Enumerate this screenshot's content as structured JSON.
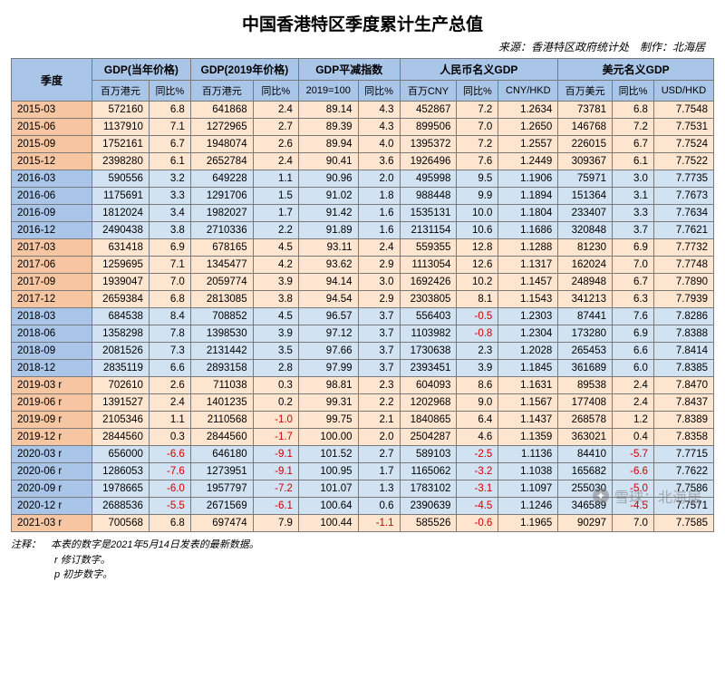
{
  "title": "中国香港特区季度累计生产总值",
  "source": "来源：香港特区政府统计处　制作：北海居",
  "watermark": {
    "brand": "雪球",
    "author": "北海居"
  },
  "headers": {
    "quarter": "季度",
    "groups": [
      {
        "label": "GDP(当年价格)",
        "cols": [
          "百万港元",
          "同比%"
        ]
      },
      {
        "label": "GDP(2019年价格)",
        "cols": [
          "百万港元",
          "同比%"
        ]
      },
      {
        "label": "GDP平减指数",
        "cols": [
          "2019=100",
          "同比%"
        ]
      },
      {
        "label": "人民币名义GDP",
        "cols": [
          "百万CNY",
          "同比%",
          "CNY/HKD"
        ]
      },
      {
        "label": "美元名义GDP",
        "cols": [
          "百万美元",
          "同比%",
          "USD/HKD"
        ]
      }
    ]
  },
  "footnotes": {
    "label": "注释：",
    "main": "本表的数字是2021年5月14日发表的最新数据。",
    "r": "r 修订数字。",
    "p": "p 初步数字。"
  },
  "rows": [
    {
      "q": "2015-03",
      "cells": [
        "572160",
        "6.8",
        "641868",
        "2.4",
        "89.14",
        "4.3",
        "452867",
        "7.2",
        "1.2634",
        "73781",
        "6.8",
        "7.7548"
      ]
    },
    {
      "q": "2015-06",
      "cells": [
        "1137910",
        "7.1",
        "1272965",
        "2.7",
        "89.39",
        "4.3",
        "899506",
        "7.0",
        "1.2650",
        "146768",
        "7.2",
        "7.7531"
      ]
    },
    {
      "q": "2015-09",
      "cells": [
        "1752161",
        "6.7",
        "1948074",
        "2.6",
        "89.94",
        "4.0",
        "1395372",
        "7.2",
        "1.2557",
        "226015",
        "6.7",
        "7.7524"
      ]
    },
    {
      "q": "2015-12",
      "cells": [
        "2398280",
        "6.1",
        "2652784",
        "2.4",
        "90.41",
        "3.6",
        "1926496",
        "7.6",
        "1.2449",
        "309367",
        "6.1",
        "7.7522"
      ]
    },
    {
      "q": "2016-03",
      "cells": [
        "590556",
        "3.2",
        "649228",
        "1.1",
        "90.96",
        "2.0",
        "495998",
        "9.5",
        "1.1906",
        "75971",
        "3.0",
        "7.7735"
      ]
    },
    {
      "q": "2016-06",
      "cells": [
        "1175691",
        "3.3",
        "1291706",
        "1.5",
        "91.02",
        "1.8",
        "988448",
        "9.9",
        "1.1894",
        "151364",
        "3.1",
        "7.7673"
      ]
    },
    {
      "q": "2016-09",
      "cells": [
        "1812024",
        "3.4",
        "1982027",
        "1.7",
        "91.42",
        "1.6",
        "1535131",
        "10.0",
        "1.1804",
        "233407",
        "3.3",
        "7.7634"
      ]
    },
    {
      "q": "2016-12",
      "cells": [
        "2490438",
        "3.8",
        "2710336",
        "2.2",
        "91.89",
        "1.6",
        "2131154",
        "10.6",
        "1.1686",
        "320848",
        "3.7",
        "7.7621"
      ]
    },
    {
      "q": "2017-03",
      "cells": [
        "631418",
        "6.9",
        "678165",
        "4.5",
        "93.11",
        "2.4",
        "559355",
        "12.8",
        "1.1288",
        "81230",
        "6.9",
        "7.7732"
      ]
    },
    {
      "q": "2017-06",
      "cells": [
        "1259695",
        "7.1",
        "1345477",
        "4.2",
        "93.62",
        "2.9",
        "1113054",
        "12.6",
        "1.1317",
        "162024",
        "7.0",
        "7.7748"
      ]
    },
    {
      "q": "2017-09",
      "cells": [
        "1939047",
        "7.0",
        "2059774",
        "3.9",
        "94.14",
        "3.0",
        "1692426",
        "10.2",
        "1.1457",
        "248948",
        "6.7",
        "7.7890"
      ]
    },
    {
      "q": "2017-12",
      "cells": [
        "2659384",
        "6.8",
        "2813085",
        "3.8",
        "94.54",
        "2.9",
        "2303805",
        "8.1",
        "1.1543",
        "341213",
        "6.3",
        "7.7939"
      ]
    },
    {
      "q": "2018-03",
      "cells": [
        "684538",
        "8.4",
        "708852",
        "4.5",
        "96.57",
        "3.7",
        "556403",
        "-0.5",
        "1.2303",
        "87441",
        "7.6",
        "7.8286"
      ]
    },
    {
      "q": "2018-06",
      "cells": [
        "1358298",
        "7.8",
        "1398530",
        "3.9",
        "97.12",
        "3.7",
        "1103982",
        "-0.8",
        "1.2304",
        "173280",
        "6.9",
        "7.8388"
      ]
    },
    {
      "q": "2018-09",
      "cells": [
        "2081526",
        "7.3",
        "2131442",
        "3.5",
        "97.66",
        "3.7",
        "1730638",
        "2.3",
        "1.2028",
        "265453",
        "6.6",
        "7.8414"
      ]
    },
    {
      "q": "2018-12",
      "cells": [
        "2835119",
        "6.6",
        "2893158",
        "2.8",
        "97.99",
        "3.7",
        "2393451",
        "3.9",
        "1.1845",
        "361689",
        "6.0",
        "7.8385"
      ]
    },
    {
      "q": "2019-03 r",
      "cells": [
        "702610",
        "2.6",
        "711038",
        "0.3",
        "98.81",
        "2.3",
        "604093",
        "8.6",
        "1.1631",
        "89538",
        "2.4",
        "7.8470"
      ]
    },
    {
      "q": "2019-06 r",
      "cells": [
        "1391527",
        "2.4",
        "1401235",
        "0.2",
        "99.31",
        "2.2",
        "1202968",
        "9.0",
        "1.1567",
        "177408",
        "2.4",
        "7.8437"
      ]
    },
    {
      "q": "2019-09 r",
      "cells": [
        "2105346",
        "1.1",
        "2110568",
        "-1.0",
        "99.75",
        "2.1",
        "1840865",
        "6.4",
        "1.1437",
        "268578",
        "1.2",
        "7.8389"
      ]
    },
    {
      "q": "2019-12 r",
      "cells": [
        "2844560",
        "0.3",
        "2844560",
        "-1.7",
        "100.00",
        "2.0",
        "2504287",
        "4.6",
        "1.1359",
        "363021",
        "0.4",
        "7.8358"
      ]
    },
    {
      "q": "2020-03 r",
      "cells": [
        "656000",
        "-6.6",
        "646180",
        "-9.1",
        "101.52",
        "2.7",
        "589103",
        "-2.5",
        "1.1136",
        "84410",
        "-5.7",
        "7.7715"
      ]
    },
    {
      "q": "2020-06 r",
      "cells": [
        "1286053",
        "-7.6",
        "1273951",
        "-9.1",
        "100.95",
        "1.7",
        "1165062",
        "-3.2",
        "1.1038",
        "165682",
        "-6.6",
        "7.7622"
      ]
    },
    {
      "q": "2020-09 r",
      "cells": [
        "1978665",
        "-6.0",
        "1957797",
        "-7.2",
        "101.07",
        "1.3",
        "1783102",
        "-3.1",
        "1.1097",
        "255030",
        "-5.0",
        "7.7586"
      ]
    },
    {
      "q": "2020-12 r",
      "cells": [
        "2688536",
        "-5.5",
        "2671569",
        "-6.1",
        "100.64",
        "0.6",
        "2390639",
        "-4.5",
        "1.1246",
        "346589",
        "-4.5",
        "7.7571"
      ]
    },
    {
      "q": "2021-03 r",
      "cells": [
        "700568",
        "6.8",
        "697474",
        "7.9",
        "100.44",
        "-1.1",
        "585526",
        "-0.6",
        "1.1965",
        "90297",
        "7.0",
        "7.7585"
      ]
    }
  ]
}
